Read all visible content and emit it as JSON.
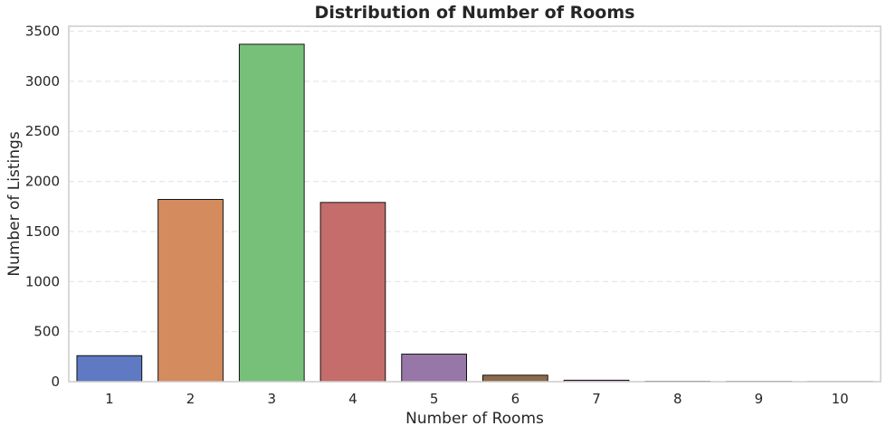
{
  "chart_data": {
    "type": "bar",
    "title": "Distribution of Number of Rooms",
    "xlabel": "Number of Rooms",
    "ylabel": "Number of Listings",
    "categories": [
      "1",
      "2",
      "3",
      "4",
      "5",
      "6",
      "7",
      "8",
      "9",
      "10"
    ],
    "values": [
      260,
      1820,
      3370,
      1790,
      275,
      65,
      15,
      4,
      3,
      2
    ],
    "colors": [
      "#5f79c2",
      "#d48b5e",
      "#77c07a",
      "#c46d6b",
      "#9677a8",
      "#8c6a4c",
      "#c07ab4",
      "#9a9a9a",
      "#c2bf6a",
      "#6bb7cd"
    ],
    "ylim": [
      0,
      3550
    ],
    "yticks": [
      "0",
      "500",
      "1000",
      "1500",
      "2000",
      "2500",
      "3000",
      "3500"
    ],
    "grid": true,
    "legend": "none"
  }
}
